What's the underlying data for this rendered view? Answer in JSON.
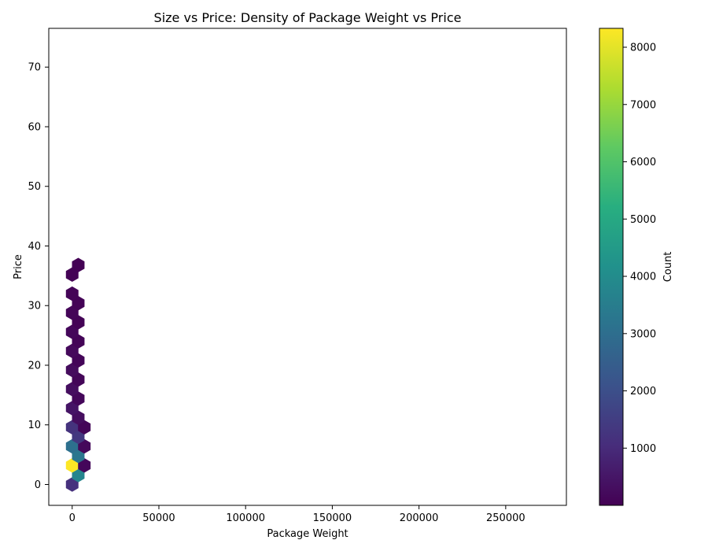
{
  "chart_data": {
    "type": "hexbin",
    "title": "Size vs Price: Density of Package Weight vs Price",
    "xlabel": "Package Weight",
    "ylabel": "Price",
    "xlim": [
      -13500,
      285000
    ],
    "ylim": [
      -3.5,
      76.5
    ],
    "xticks": [
      0,
      50000,
      100000,
      150000,
      200000,
      250000
    ],
    "yticks": [
      0,
      10,
      20,
      30,
      40,
      50,
      60,
      70
    ],
    "grid": false,
    "colormap": "viridis",
    "colorbar": {
      "label": "Count",
      "min": 1,
      "max": 8330,
      "ticks": [
        1000,
        2000,
        3000,
        4000,
        5000,
        6000,
        7000,
        8000
      ]
    },
    "bins": [
      {
        "x": 0,
        "y": 0,
        "count": 1150
      },
      {
        "x": 3500,
        "y": 1.6,
        "count": 3750
      },
      {
        "x": 0,
        "y": 3.2,
        "count": 8330
      },
      {
        "x": 7000,
        "y": 3.2,
        "count": 150
      },
      {
        "x": 3500,
        "y": 4.8,
        "count": 3300
      },
      {
        "x": 0,
        "y": 6.4,
        "count": 3050
      },
      {
        "x": 7000,
        "y": 6.4,
        "count": 200
      },
      {
        "x": 3500,
        "y": 8.0,
        "count": 1350
      },
      {
        "x": 0,
        "y": 9.6,
        "count": 1200
      },
      {
        "x": 7000,
        "y": 9.6,
        "count": 100
      },
      {
        "x": 3500,
        "y": 11.2,
        "count": 300
      },
      {
        "x": 0,
        "y": 12.8,
        "count": 450
      },
      {
        "x": 3500,
        "y": 14.4,
        "count": 150
      },
      {
        "x": 0,
        "y": 16.0,
        "count": 300
      },
      {
        "x": 3500,
        "y": 17.6,
        "count": 120
      },
      {
        "x": 0,
        "y": 19.2,
        "count": 250
      },
      {
        "x": 3500,
        "y": 20.8,
        "count": 100
      },
      {
        "x": 0,
        "y": 22.4,
        "count": 200
      },
      {
        "x": 3500,
        "y": 24.0,
        "count": 80
      },
      {
        "x": 0,
        "y": 25.6,
        "count": 150
      },
      {
        "x": 3500,
        "y": 27.2,
        "count": 60
      },
      {
        "x": 0,
        "y": 28.8,
        "count": 100
      },
      {
        "x": 3500,
        "y": 30.4,
        "count": 50
      },
      {
        "x": 0,
        "y": 32.0,
        "count": 80
      },
      {
        "x": 0,
        "y": 35.2,
        "count": 40
      },
      {
        "x": 3500,
        "y": 36.8,
        "count": 30
      }
    ]
  }
}
